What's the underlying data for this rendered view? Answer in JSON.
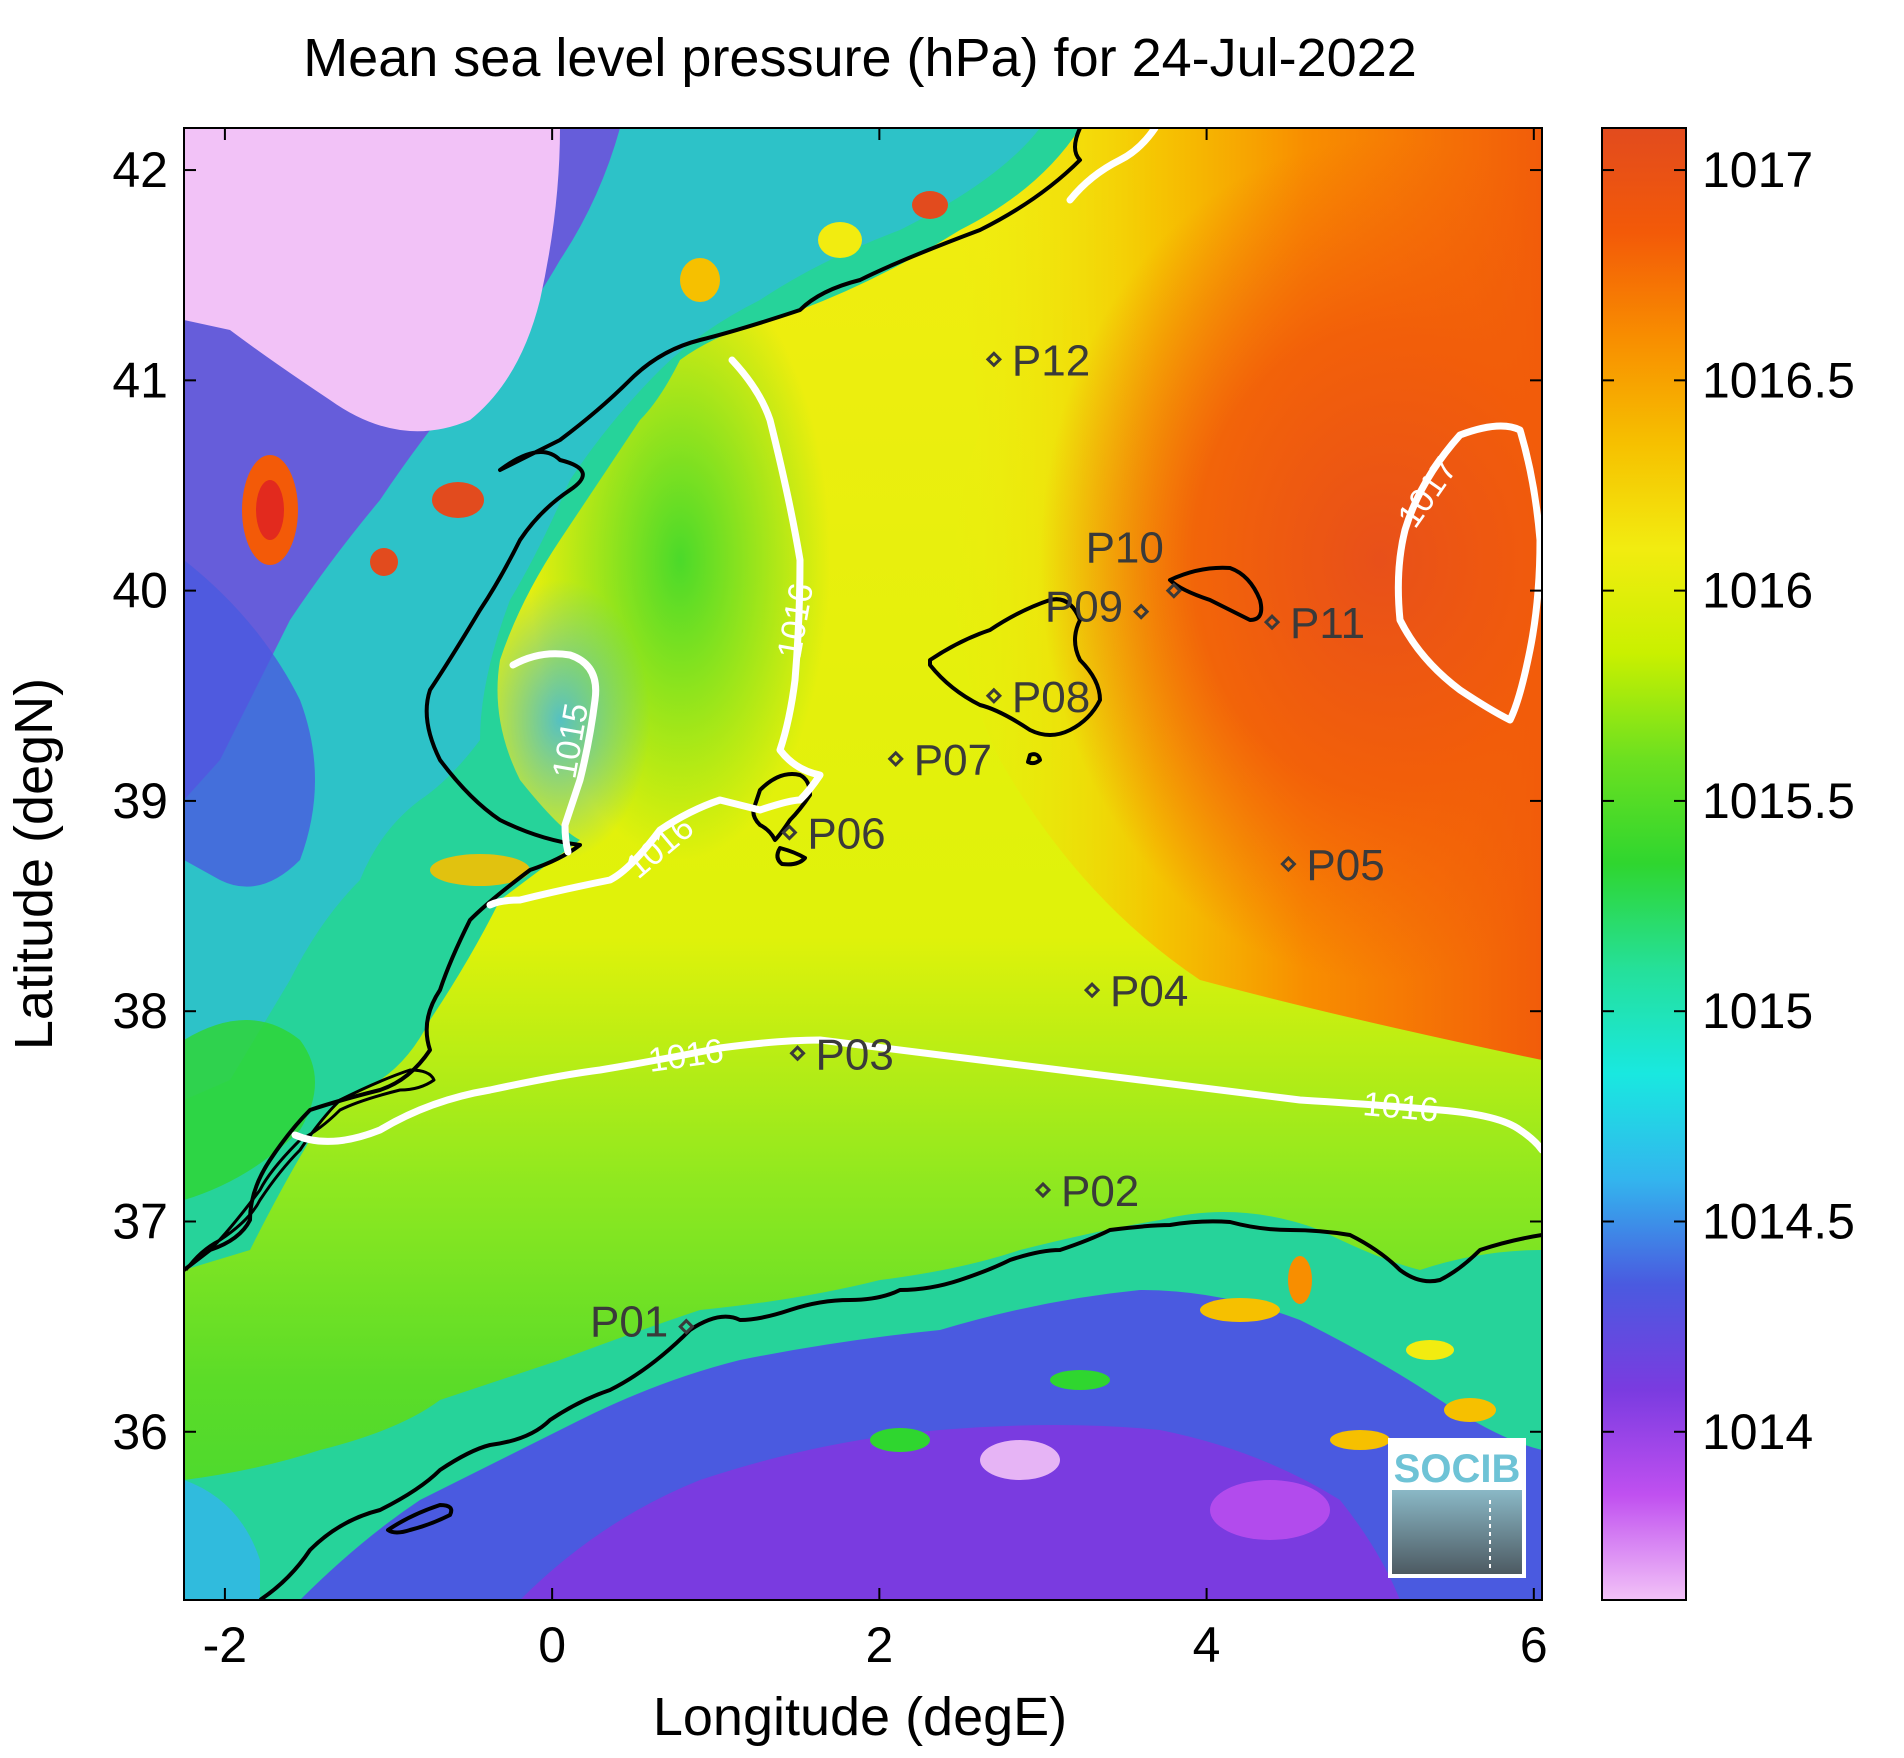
{
  "title": "Mean sea level pressure (hPa) for 24-Jul-2022",
  "xlabel": "Longitude (degE)",
  "ylabel": "Latitude (degN)",
  "xticks": [
    {
      "value": -2,
      "label": "-2"
    },
    {
      "value": 0,
      "label": "0"
    },
    {
      "value": 2,
      "label": "2"
    },
    {
      "value": 4,
      "label": "4"
    },
    {
      "value": 6,
      "label": "6"
    }
  ],
  "yticks": [
    {
      "value": 36,
      "label": "36"
    },
    {
      "value": 37,
      "label": "37"
    },
    {
      "value": 38,
      "label": "38"
    },
    {
      "value": 39,
      "label": "39"
    },
    {
      "value": 40,
      "label": "40"
    },
    {
      "value": 41,
      "label": "41"
    },
    {
      "value": 42,
      "label": "42"
    }
  ],
  "xlim": [
    -2.25,
    6.05
  ],
  "ylim": [
    35.2,
    42.2
  ],
  "colorbar": {
    "range": [
      1013.6,
      1017.1
    ],
    "ticks": [
      {
        "value": 1014,
        "label": "1014"
      },
      {
        "value": 1014.5,
        "label": "1014.5"
      },
      {
        "value": 1015,
        "label": "1015"
      },
      {
        "value": 1015.5,
        "label": "1015.5"
      },
      {
        "value": 1016,
        "label": "1016"
      },
      {
        "value": 1016.5,
        "label": "1016.5"
      },
      {
        "value": 1017,
        "label": "1017"
      }
    ],
    "colors": [
      "#f2c2f7",
      "#c050f0",
      "#7a3be0",
      "#4a5ae0",
      "#33b5ee",
      "#19e8e0",
      "#25e09a",
      "#2fd62f",
      "#6ce020",
      "#c9f000",
      "#f2ec10",
      "#f6c000",
      "#f88e00",
      "#f35a08",
      "#e24b1e"
    ]
  },
  "chart_data": {
    "type": "heatmap",
    "variable": "Mean sea level pressure",
    "units": "hPa",
    "date": "24-Jul-2022",
    "stations": [
      {
        "name": "P01",
        "lon": 0.82,
        "lat": 36.5
      },
      {
        "name": "P02",
        "lon": 3.0,
        "lat": 37.15
      },
      {
        "name": "P03",
        "lon": 1.5,
        "lat": 37.8
      },
      {
        "name": "P04",
        "lon": 3.3,
        "lat": 38.1
      },
      {
        "name": "P05",
        "lon": 4.5,
        "lat": 38.7
      },
      {
        "name": "P06",
        "lon": 1.45,
        "lat": 38.85
      },
      {
        "name": "P07",
        "lon": 2.1,
        "lat": 39.2
      },
      {
        "name": "P08",
        "lon": 2.7,
        "lat": 39.5
      },
      {
        "name": "P09",
        "lon": 3.6,
        "lat": 39.9
      },
      {
        "name": "P10",
        "lon": 3.8,
        "lat": 40.0
      },
      {
        "name": "P11",
        "lon": 4.4,
        "lat": 39.85
      },
      {
        "name": "P12",
        "lon": 2.7,
        "lat": 41.1
      }
    ],
    "contours": [
      {
        "level": 1015,
        "label": "1015"
      },
      {
        "level": 1016,
        "label": "1016"
      },
      {
        "level": 1017,
        "label": "1017"
      }
    ]
  },
  "logo": {
    "text": "SOCIB"
  }
}
